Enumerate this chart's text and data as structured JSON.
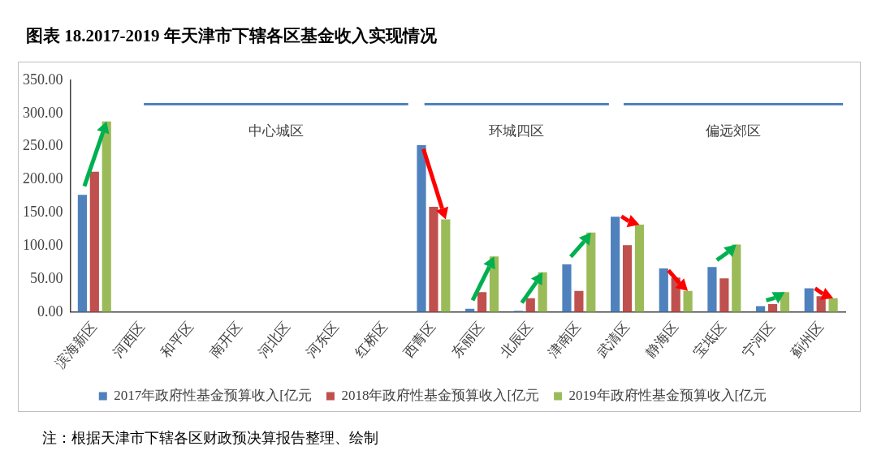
{
  "chart_data": {
    "type": "bar",
    "title": "图表 18.2017-2019 年天津市下辖各区基金收入实现情况",
    "categories": [
      "滨海新区",
      "河西区",
      "和平区",
      "南开区",
      "河北区",
      "河东区",
      "红桥区",
      "西青区",
      "东丽区",
      "北辰区",
      "津南区",
      "武清区",
      "静海区",
      "宝坻区",
      "宁河区",
      "蓟州区"
    ],
    "series": [
      {
        "name": "2017年政府性基金预算收入[亿元",
        "color": "#4f81bd",
        "values": [
          177,
          null,
          null,
          null,
          null,
          null,
          null,
          252,
          5,
          2,
          72,
          144,
          66,
          68,
          9,
          36
        ]
      },
      {
        "name": "2018年政府性基金预算收入[亿元",
        "color": "#c0504d",
        "values": [
          212,
          null,
          null,
          null,
          null,
          null,
          null,
          159,
          30,
          21,
          32,
          101,
          52,
          51,
          12,
          24
        ]
      },
      {
        "name": "2019年政府性基金预算收入[亿元",
        "color": "#9bbb59",
        "values": [
          288,
          null,
          null,
          null,
          null,
          null,
          null,
          140,
          84,
          60,
          120,
          132,
          32,
          102,
          30,
          21
        ]
      }
    ],
    "ylim": [
      0,
      350
    ],
    "yticks": [
      {
        "value": 0,
        "label": "0.00"
      },
      {
        "value": 50,
        "label": "50.00"
      },
      {
        "value": 100,
        "label": "100.00"
      },
      {
        "value": 150,
        "label": "150.00"
      },
      {
        "value": 200,
        "label": "200.00"
      },
      {
        "value": 250,
        "label": "250.00"
      },
      {
        "value": 300,
        "label": "300.00"
      },
      {
        "value": 350,
        "label": "350.00"
      }
    ],
    "grid": false,
    "legend": "bottom",
    "annotations": [
      "中心城区",
      "环城四区",
      "偏远郊区",
      "注：根据天津市下辖各区财政预决算报告整理、绘制"
    ]
  }
}
